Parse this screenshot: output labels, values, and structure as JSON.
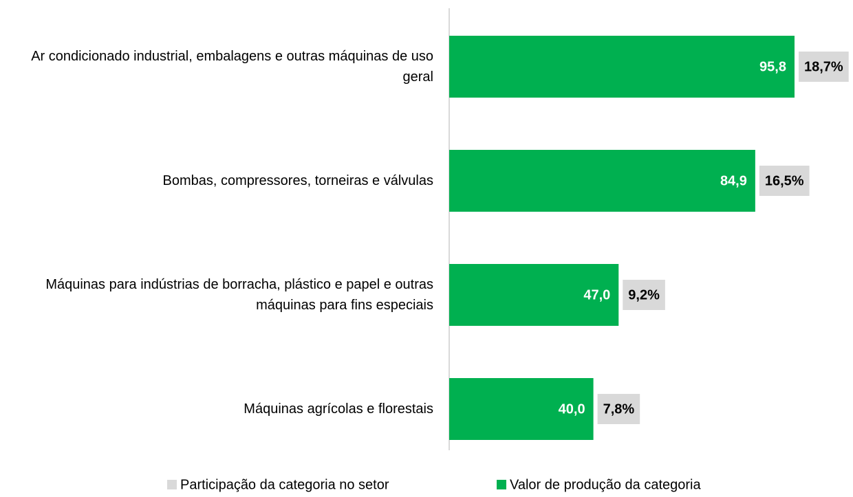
{
  "chart_data": {
    "type": "bar",
    "orientation": "horizontal",
    "categories": [
      "Ar condicionado industrial, embalagens e outras máquinas de uso geral",
      "Bombas, compressores, torneiras e válvulas",
      "Máquinas para indústrias de borracha, plástico e papel e outras máquinas para fins especiais",
      "Máquinas agrícolas e florestais"
    ],
    "series": [
      {
        "name": "Participação da categoria no setor",
        "color": "#d9d9d9",
        "values": [
          18.7,
          16.5,
          9.2,
          7.8
        ],
        "value_labels": [
          "18,7%",
          "16,5%",
          "9,2%",
          "7,8%"
        ]
      },
      {
        "name": "Valor de produção da categoria",
        "color": "#00b050",
        "values": [
          95.8,
          84.9,
          47.0,
          40.0
        ],
        "value_labels": [
          "95,8",
          "84,9",
          "47,0",
          "40,0"
        ]
      }
    ]
  }
}
